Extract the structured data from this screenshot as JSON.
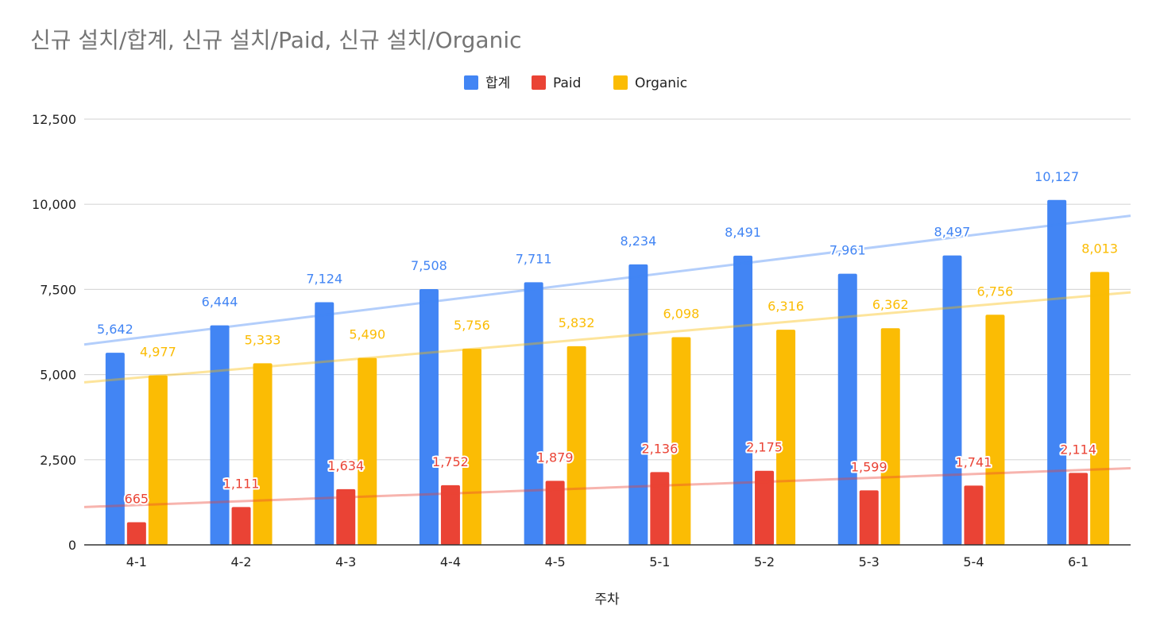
{
  "chart_data": {
    "type": "bar",
    "title": "신규 설치/합계, 신규 설치/Paid, 신규 설치/Organic",
    "xlabel": "주차",
    "ylabel": "",
    "categories": [
      "4-1",
      "4-2",
      "4-3",
      "4-4",
      "4-5",
      "5-1",
      "5-2",
      "5-3",
      "5-4",
      "6-1"
    ],
    "ylim": [
      0,
      12500
    ],
    "yticks": [
      0,
      2500,
      5000,
      7500,
      10000,
      12500
    ],
    "ytick_labels": [
      "0",
      "2,500",
      "5,000",
      "7,500",
      "10,000",
      "12,500"
    ],
    "grid": true,
    "legend_position": "top-center",
    "series": [
      {
        "name": "합계",
        "color": "#4285F4",
        "values": [
          5642,
          6444,
          7124,
          7508,
          7711,
          8234,
          8491,
          7961,
          8497,
          10127
        ],
        "labels": [
          "5,642",
          "6,444",
          "7,124",
          "7,508",
          "7,711",
          "8,234",
          "8,491",
          "7,961",
          "8,497",
          "10,127"
        ]
      },
      {
        "name": "Paid",
        "color": "#EA4335",
        "values": [
          665,
          1111,
          1634,
          1752,
          1879,
          2136,
          2175,
          1599,
          1741,
          2114
        ],
        "labels": [
          "665",
          "1,111",
          "1,634",
          "1,752",
          "1,879",
          "2,136",
          "2,175",
          "1,599",
          "1,741",
          "2,114"
        ]
      },
      {
        "name": "Organic",
        "color": "#FBBC04",
        "values": [
          4977,
          5333,
          5490,
          5756,
          5832,
          6098,
          6316,
          6362,
          6756,
          8013
        ],
        "labels": [
          "4,977",
          "5,333",
          "5,490",
          "5,756",
          "5,832",
          "6,098",
          "6,316",
          "6,362",
          "6,756",
          "8,013"
        ]
      }
    ],
    "trendlines": true
  }
}
